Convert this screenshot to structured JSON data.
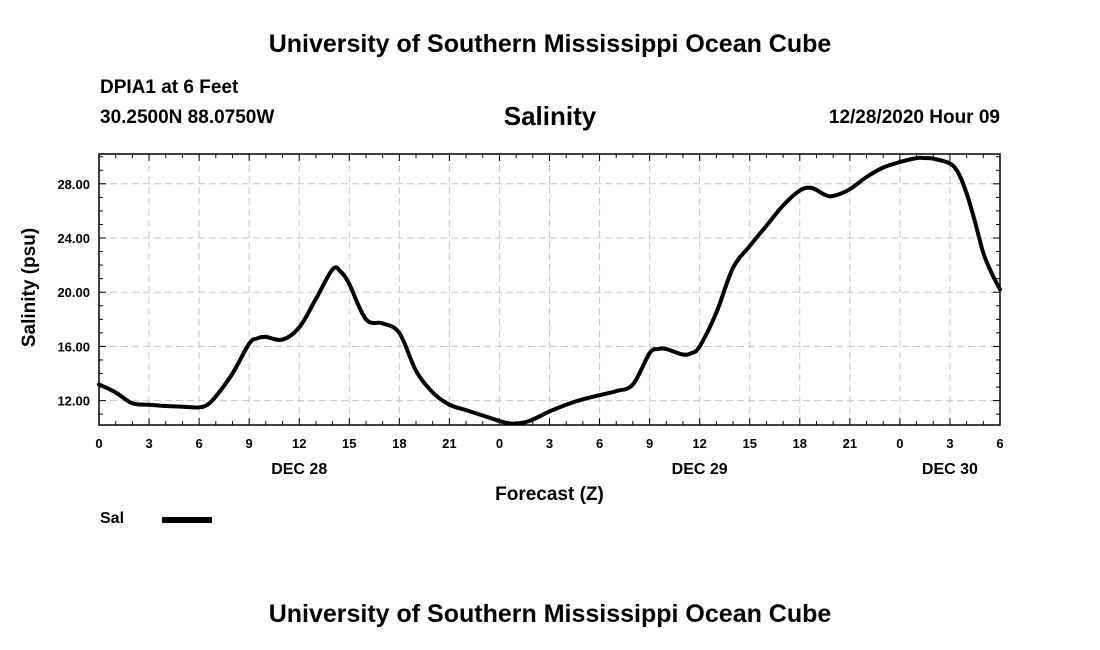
{
  "header": {
    "title": "University of Southern Mississippi Ocean Cube",
    "station": "DPIA1 at 6 Feet",
    "coords": "30.2500N 88.0750W",
    "datetime": "12/28/2020 Hour 09",
    "footer_title": "University of Southern Mississippi Ocean Cube"
  },
  "legend": {
    "label": "Sal",
    "color": "#000000"
  },
  "chart_data": {
    "type": "line",
    "title": "Salinity",
    "xlabel": "Forecast (Z)",
    "ylabel": "Salinity (psu)",
    "xunit": "hours since DEC 28 00Z",
    "xlim": [
      0,
      54
    ],
    "ylim": [
      10.2,
      30.2
    ],
    "xticks": [
      0,
      3,
      6,
      9,
      12,
      15,
      18,
      21,
      24,
      27,
      30,
      33,
      36,
      39,
      42,
      45,
      48,
      51,
      54
    ],
    "xtick_labels": [
      "0",
      "3",
      "6",
      "9",
      "12",
      "15",
      "18",
      "21",
      "0",
      "3",
      "6",
      "9",
      "12",
      "15",
      "18",
      "21",
      "0",
      "3",
      "6"
    ],
    "yticks": [
      12,
      16,
      20,
      24,
      28
    ],
    "ytick_labels": [
      "12.00",
      "16.00",
      "20.00",
      "24.00",
      "28.00"
    ],
    "date_labels": [
      {
        "x": 12,
        "label": "DEC 28"
      },
      {
        "x": 36,
        "label": "DEC 29"
      },
      {
        "x": 51,
        "label": "DEC 30"
      }
    ],
    "grid": true,
    "series": [
      {
        "name": "Sal",
        "x": [
          0,
          1,
          2,
          3,
          4,
          5,
          6,
          6.5,
          7,
          8,
          9,
          9.5,
          10,
          11,
          12,
          13,
          14,
          14.5,
          15,
          16,
          17,
          18,
          19,
          20,
          21,
          22,
          23,
          24,
          24.7,
          25.5,
          26,
          27,
          28,
          29,
          30,
          31,
          32,
          33,
          33.5,
          34,
          35,
          35.5,
          36,
          37,
          38,
          39,
          40,
          41,
          42,
          42.7,
          43.5,
          44,
          45,
          46,
          47,
          48,
          49,
          49.5,
          50,
          51,
          51.5,
          52,
          52.5,
          53,
          53.5,
          54
        ],
        "values": [
          13.2,
          12.6,
          11.8,
          11.7,
          11.6,
          11.55,
          11.5,
          11.7,
          12.3,
          14.0,
          16.2,
          16.6,
          16.7,
          16.5,
          17.4,
          19.5,
          21.7,
          21.5,
          20.6,
          18.0,
          17.7,
          17.0,
          14.2,
          12.6,
          11.7,
          11.3,
          10.9,
          10.5,
          10.3,
          10.4,
          10.6,
          11.2,
          11.7,
          12.1,
          12.4,
          12.7,
          13.2,
          15.5,
          15.8,
          15.8,
          15.4,
          15.5,
          16.0,
          18.5,
          21.8,
          23.4,
          24.9,
          26.4,
          27.5,
          27.7,
          27.2,
          27.1,
          27.6,
          28.5,
          29.2,
          29.6,
          29.9,
          29.9,
          29.85,
          29.5,
          28.8,
          27.3,
          25.2,
          22.9,
          21.4,
          20.2
        ]
      }
    ]
  }
}
